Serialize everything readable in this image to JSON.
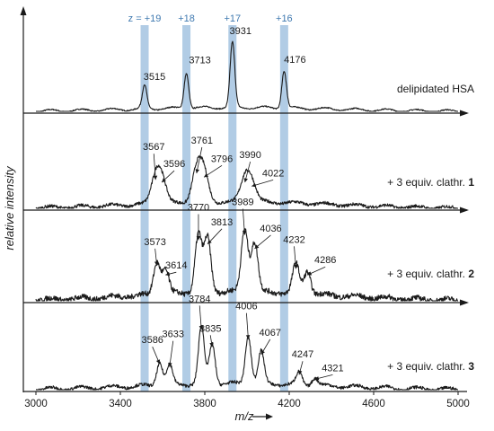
{
  "chart_data": {
    "type": "line",
    "xlabel": "m/z",
    "ylabel": "relative intensity",
    "xlim": [
      3000,
      5000
    ],
    "x_ticks": [
      3000,
      3400,
      3800,
      4200,
      4600,
      5000
    ],
    "grid": false,
    "colors": {
      "trace": "#1a1a1a",
      "charge_band": "#a9c6e2",
      "charge_text": "#3f79b0",
      "axis": "#1a1a1a"
    },
    "charge_states": [
      {
        "label": "z = +19",
        "mz": 3515
      },
      {
        "label": "+18",
        "mz": 3713
      },
      {
        "label": "+17",
        "mz": 3931
      },
      {
        "label": "+16",
        "mz": 4176
      }
    ],
    "series": [
      {
        "name": "delipidated HSA",
        "name_parts": [
          {
            "text": "delipidated HSA",
            "bold": false
          }
        ],
        "peaks": [
          {
            "label": "3515",
            "mz": 3515,
            "height": 0.35
          },
          {
            "label": "3713",
            "mz": 3713,
            "height": 0.55
          },
          {
            "label": "3931",
            "mz": 3931,
            "height": 1.0
          },
          {
            "label": "4176",
            "mz": 4176,
            "height": 0.58
          }
        ]
      },
      {
        "name": "+ 3 equiv. clathr. 1",
        "name_parts": [
          {
            "text": "+ 3 equiv. clathr. ",
            "bold": false
          },
          {
            "text": "1",
            "bold": true
          }
        ],
        "peaks": [
          {
            "label": "3567",
            "mz": 3567,
            "height": 0.4
          },
          {
            "label": "3596",
            "mz": 3596,
            "height": 0.36
          },
          {
            "label": "3761",
            "mz": 3761,
            "height": 0.5
          },
          {
            "label": "3796",
            "mz": 3796,
            "height": 0.44
          },
          {
            "label": "3990",
            "mz": 3990,
            "height": 0.36
          },
          {
            "label": "4022",
            "mz": 4022,
            "height": 0.3
          }
        ]
      },
      {
        "name": "+ 3 equiv. clathr. 2",
        "name_parts": [
          {
            "text": "+ 3 equiv. clathr. ",
            "bold": false
          },
          {
            "text": "2",
            "bold": true
          }
        ],
        "peaks": [
          {
            "label": "3573",
            "mz": 3573,
            "height": 0.42
          },
          {
            "label": "3614",
            "mz": 3614,
            "height": 0.3
          },
          {
            "label": "3770",
            "mz": 3770,
            "height": 0.75
          },
          {
            "label": "3813",
            "mz": 3813,
            "height": 0.7
          },
          {
            "label": "3989",
            "mz": 3989,
            "height": 0.82
          },
          {
            "label": "4036",
            "mz": 4036,
            "height": 0.64
          },
          {
            "label": "4232",
            "mz": 4232,
            "height": 0.38
          },
          {
            "label": "4286",
            "mz": 4286,
            "height": 0.3
          }
        ]
      },
      {
        "name": "+ 3 equiv. clathr. 3",
        "name_parts": [
          {
            "text": "+ 3 equiv. clathr. ",
            "bold": false
          },
          {
            "text": "3",
            "bold": true
          }
        ],
        "peaks": [
          {
            "label": "3586",
            "mz": 3586,
            "height": 0.3
          },
          {
            "label": "3633",
            "mz": 3633,
            "height": 0.26
          },
          {
            "label": "3784",
            "mz": 3784,
            "height": 0.74
          },
          {
            "label": "3835",
            "mz": 3835,
            "height": 0.52
          },
          {
            "label": "4006",
            "mz": 4006,
            "height": 0.62
          },
          {
            "label": "4067",
            "mz": 4067,
            "height": 0.42
          },
          {
            "label": "4247",
            "mz": 4247,
            "height": 0.16
          },
          {
            "label": "4321",
            "mz": 4321,
            "height": 0.1
          }
        ]
      }
    ]
  }
}
